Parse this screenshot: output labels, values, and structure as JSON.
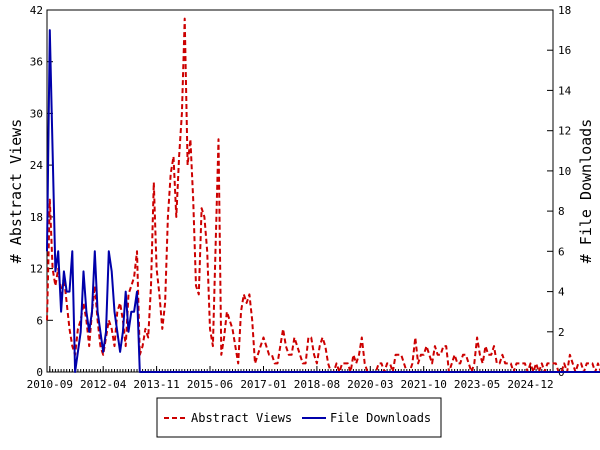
{
  "chart_data": {
    "type": "line",
    "left_axis": {
      "label": "# Abstract Views",
      "ylim": [
        0,
        42
      ],
      "ticks": [
        "0",
        "6",
        "12",
        "18",
        "24",
        "30",
        "36",
        "42"
      ]
    },
    "right_axis": {
      "label": "# File Downloads",
      "ylim": [
        0,
        18
      ],
      "ticks": [
        "0",
        "2",
        "4",
        "6",
        "8",
        "10",
        "12",
        "14",
        "16",
        "18"
      ]
    },
    "x_axis": {
      "ticks": [
        "2010-09",
        "2012-04",
        "2013-11",
        "2015-06",
        "2017-01",
        "2018-08",
        "2020-03",
        "2021-10",
        "2023-05",
        "2024-12"
      ],
      "range": [
        "2010-08",
        "2025-08"
      ]
    },
    "grid": false,
    "legend_placement": "bottom",
    "series": [
      {
        "name": "Abstract Views",
        "axis": "left",
        "color": "#cc0000",
        "dash": "dashed",
        "x_start": "2010-08",
        "step": "month",
        "values": [
          6,
          20,
          12,
          10,
          12,
          9,
          11,
          8,
          5,
          3,
          2,
          5,
          6,
          8,
          6,
          3,
          7,
          10,
          6,
          3,
          2,
          4,
          6,
          5,
          3,
          7,
          8,
          6,
          3,
          9,
          10,
          11,
          14,
          2,
          3,
          5,
          4,
          10,
          22,
          12,
          9,
          5,
          8,
          18,
          23,
          25,
          18,
          25,
          30,
          41,
          24,
          27,
          20,
          10,
          9,
          19,
          18,
          14,
          5,
          3,
          15,
          27,
          2,
          4,
          7,
          6,
          5,
          3,
          1,
          7,
          9,
          8,
          9,
          6,
          1,
          2,
          3,
          4,
          3,
          2,
          2,
          1,
          1,
          3,
          5,
          3,
          2,
          2,
          4,
          3,
          2,
          1,
          1,
          4,
          4,
          2,
          1,
          3,
          4,
          3,
          1,
          0,
          0,
          1,
          0,
          1,
          1,
          1,
          0,
          2,
          1,
          2,
          4,
          1,
          0,
          0,
          0,
          0,
          1,
          1,
          0,
          1,
          1,
          0,
          2,
          2,
          2,
          1,
          0,
          0,
          1,
          4,
          1,
          2,
          2,
          3,
          2,
          1,
          3,
          2,
          2,
          3,
          3,
          0,
          1,
          2,
          1,
          1,
          2,
          2,
          1,
          0,
          1,
          4,
          2,
          1,
          3,
          2,
          2,
          3,
          1,
          1,
          2,
          1,
          1,
          1,
          0,
          1,
          1,
          1,
          1,
          0,
          1,
          0,
          1,
          0,
          1,
          0,
          1,
          1,
          1,
          1,
          0,
          0,
          1,
          0,
          2,
          1,
          0,
          1,
          1,
          0,
          1,
          1,
          1,
          0,
          1,
          0,
          1,
          1,
          1,
          1
        ]
      },
      {
        "name": "File Downloads",
        "axis": "right",
        "color": "#0000aa",
        "dash": "solid",
        "x_start": "2010-08",
        "step": "month",
        "values": [
          6,
          17,
          11,
          5,
          6,
          3,
          5,
          4,
          4,
          6,
          0,
          1,
          2,
          5,
          3,
          2,
          3,
          6,
          3,
          2,
          1,
          2,
          6,
          5,
          3,
          2,
          1,
          2,
          4,
          2,
          3,
          3,
          4,
          0,
          0,
          0,
          0,
          0,
          0,
          0,
          0,
          0,
          0,
          0,
          0,
          0,
          0,
          0,
          0,
          0,
          0,
          0,
          0,
          0,
          0,
          0,
          0,
          0,
          0,
          0,
          0,
          0,
          0,
          0,
          0,
          0,
          0,
          0,
          0,
          0,
          0,
          0,
          0,
          0,
          0,
          0,
          0,
          0,
          0,
          0,
          0,
          0,
          0,
          0,
          0,
          0,
          0,
          0,
          0,
          0,
          0,
          0,
          0,
          0,
          0,
          0,
          0,
          0,
          0,
          0,
          0,
          0,
          0,
          0,
          0,
          0,
          0,
          0,
          0,
          0,
          0,
          0,
          0,
          0,
          0,
          0,
          0,
          0,
          0,
          0,
          0,
          0,
          0,
          0,
          0,
          0,
          0,
          0,
          0,
          0,
          0,
          0,
          0,
          0,
          0,
          0,
          0,
          0,
          0,
          0,
          0,
          0,
          0,
          0,
          0,
          0,
          0,
          0,
          0,
          0,
          0,
          0,
          0,
          0,
          0,
          0,
          0,
          0,
          0,
          0,
          0,
          0,
          0,
          0,
          0,
          0,
          0,
          0,
          0,
          0,
          0,
          0,
          0,
          0,
          0,
          0,
          0,
          0,
          0,
          0,
          0,
          0,
          0,
          0,
          0,
          0,
          0,
          0,
          0,
          0,
          0,
          0,
          0,
          0,
          0,
          0,
          0,
          0,
          0,
          0
        ]
      }
    ]
  }
}
